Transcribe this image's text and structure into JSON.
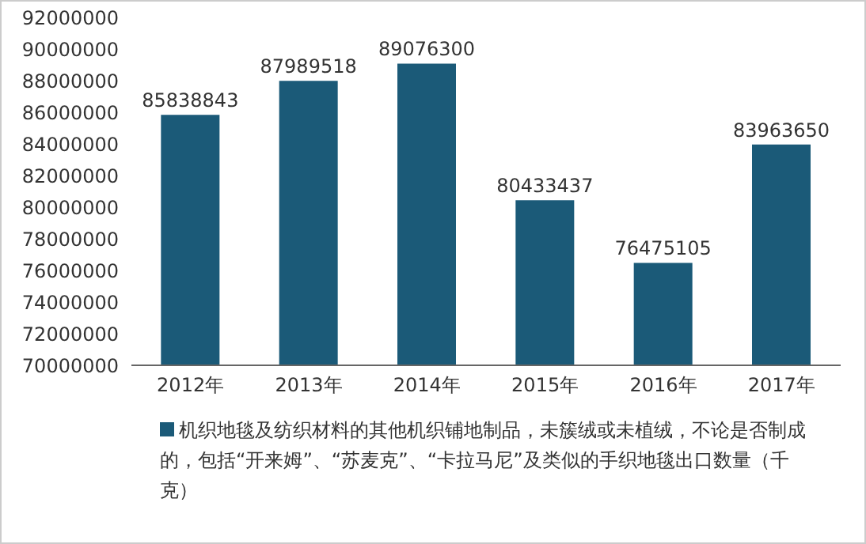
{
  "chart_data": {
    "type": "bar",
    "categories": [
      "2012年",
      "2013年",
      "2014年",
      "2015年",
      "2016年",
      "2017年"
    ],
    "series": [
      {
        "name": "机织地毯及纺织材料的其他机织铺地制品，未簇绒或未植绒，不论是否制成的，包括“开来姆”、“苏麦克”、“卡拉马尼”及类似的手织地毯出口数量（千克）",
        "color": "#1b5a78",
        "values": [
          85838843,
          87989518,
          89076300,
          80433437,
          76475105,
          83963650
        ]
      }
    ],
    "ylim": [
      70000000,
      92000000
    ],
    "yticks": [
      70000000,
      72000000,
      74000000,
      76000000,
      78000000,
      80000000,
      82000000,
      84000000,
      86000000,
      88000000,
      90000000,
      92000000
    ],
    "data_labels": true,
    "legend": "bottom",
    "grid": false
  }
}
